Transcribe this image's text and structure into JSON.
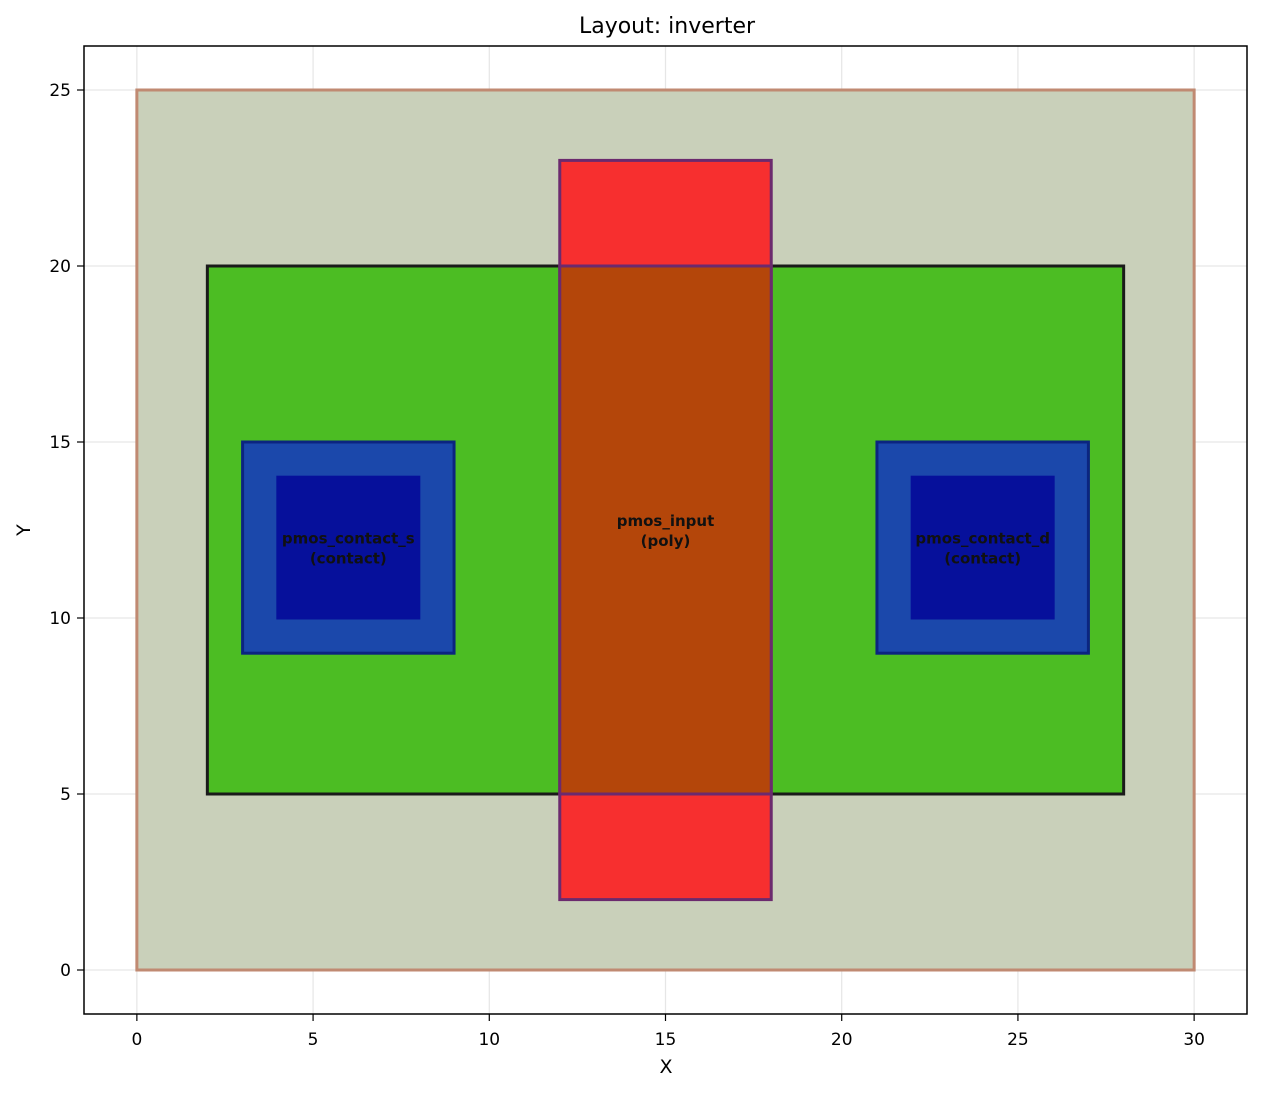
{
  "chart_data": {
    "type": "layout",
    "title": "Layout: inverter",
    "xlabel": "X",
    "ylabel": "Y",
    "xlim": [
      -1.5,
      31.5
    ],
    "ylim": [
      -1.25,
      26.25
    ],
    "xticks": [
      0,
      5,
      10,
      15,
      20,
      25,
      30
    ],
    "yticks": [
      0,
      5,
      10,
      15,
      20,
      25
    ],
    "grid": true,
    "shapes": [
      {
        "id": "substrate",
        "x0": 0,
        "y0": 0,
        "x1": 30,
        "y1": 25,
        "fill": "#c9d0ba",
        "stroke": "#c08a72"
      },
      {
        "id": "active",
        "x0": 2,
        "y0": 5,
        "x1": 28,
        "y1": 20,
        "fill": "#4cbd23",
        "stroke": "#1a1a1a"
      },
      {
        "id": "poly",
        "x0": 12,
        "y0": 2,
        "x1": 18,
        "y1": 23,
        "fill": "#f72f2f",
        "stroke": "#6b2a6e"
      },
      {
        "id": "poly-overlap",
        "x0": 12,
        "y0": 5,
        "x1": 18,
        "y1": 20,
        "fill": "#b4460a",
        "stroke": "#6b2a6e"
      },
      {
        "id": "metal-left",
        "x0": 3,
        "y0": 9,
        "x1": 9,
        "y1": 15,
        "fill": "#1b48ab",
        "stroke": "#0b2580"
      },
      {
        "id": "contact-left",
        "x0": 4,
        "y0": 10,
        "x1": 8,
        "y1": 14,
        "fill": "#06109b",
        "stroke": "#06109b"
      },
      {
        "id": "metal-right",
        "x0": 21,
        "y0": 9,
        "x1": 27,
        "y1": 15,
        "fill": "#1b48ab",
        "stroke": "#0b2580"
      },
      {
        "id": "contact-right",
        "x0": 22,
        "y0": 10,
        "x1": 26,
        "y1": 14,
        "fill": "#06109b",
        "stroke": "#06109b"
      }
    ],
    "labels": [
      {
        "id": "label-left-contact",
        "x": 6,
        "y": 12,
        "lines": [
          "pmos_contact_s",
          "(contact)"
        ]
      },
      {
        "id": "label-poly",
        "x": 15,
        "y": 12.5,
        "lines": [
          "pmos_input",
          "(poly)"
        ]
      },
      {
        "id": "label-right-contact",
        "x": 24,
        "y": 12,
        "lines": [
          "pmos_contact_d",
          "(contact)"
        ]
      }
    ]
  }
}
